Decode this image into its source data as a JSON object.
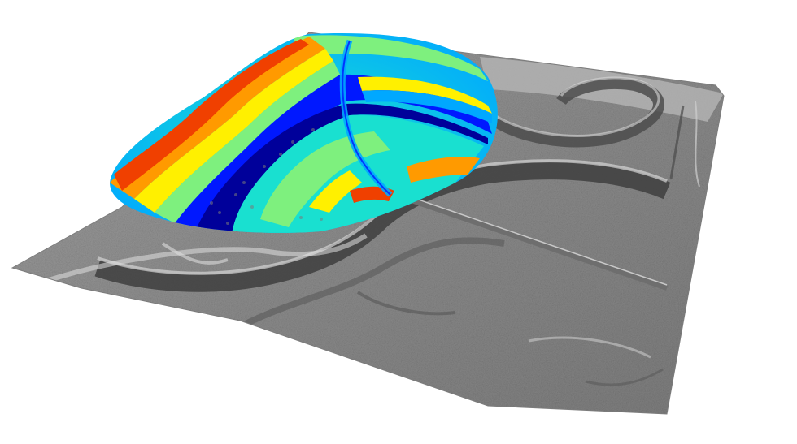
{
  "scene": {
    "subject": "lidar-point-cloud-over-hillshade-terrain",
    "terrain_colors": {
      "base": "#8a8a8a",
      "light": "#c9c9c9",
      "dark": "#4a4a4a"
    },
    "point_cloud_palette": [
      "#00009a",
      "#0018ff",
      "#00a8ff",
      "#19e0d0",
      "#7ef07e",
      "#fff000",
      "#ff9a00",
      "#f04000"
    ],
    "features": [
      "river-channel",
      "meander-bend",
      "road",
      "ridge",
      "point-cloud-disc"
    ]
  }
}
